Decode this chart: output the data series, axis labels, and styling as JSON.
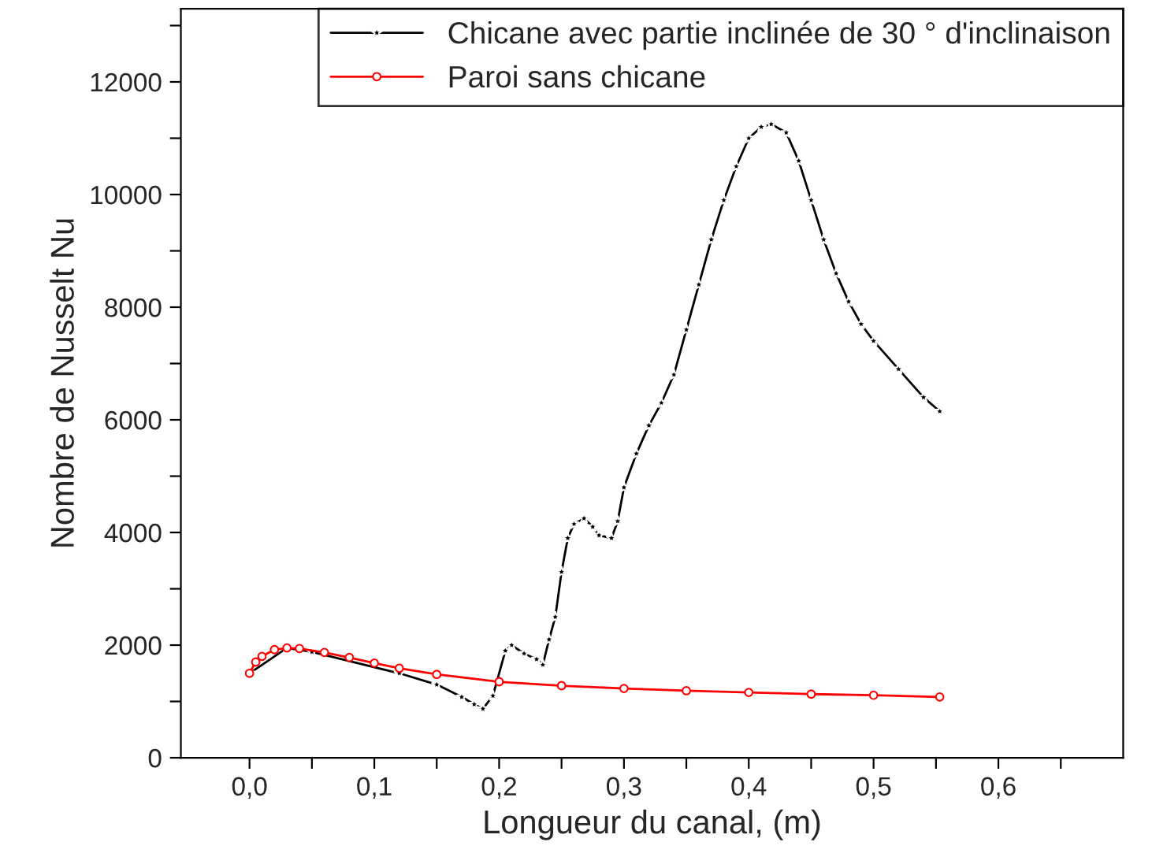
{
  "chart_data": {
    "type": "line",
    "xlabel": "Longueur du canal, (m)",
    "ylabel": "Nombre de Nusselt Nu",
    "xlim": [
      -0.055,
      0.7
    ],
    "ylim": [
      0,
      13300
    ],
    "xticks": [
      {
        "value": 0.0,
        "label": "0,0"
      },
      {
        "value": 0.05,
        "label": null
      },
      {
        "value": 0.1,
        "label": "0,1"
      },
      {
        "value": 0.15,
        "label": null
      },
      {
        "value": 0.2,
        "label": "0,2"
      },
      {
        "value": 0.25,
        "label": null
      },
      {
        "value": 0.3,
        "label": "0,3"
      },
      {
        "value": 0.35,
        "label": null
      },
      {
        "value": 0.4,
        "label": "0,4"
      },
      {
        "value": 0.45,
        "label": null
      },
      {
        "value": 0.5,
        "label": "0,5"
      },
      {
        "value": 0.55,
        "label": null
      },
      {
        "value": 0.6,
        "label": "0,6"
      },
      {
        "value": 0.65,
        "label": null
      }
    ],
    "yticks": [
      0,
      {
        "value": 1000,
        "label": null
      },
      2000,
      {
        "value": 3000,
        "label": null
      },
      4000,
      {
        "value": 5000,
        "label": null
      },
      6000,
      {
        "value": 7000,
        "label": null
      },
      8000,
      {
        "value": 9000,
        "label": null
      },
      10000,
      {
        "value": 11000,
        "label": null
      },
      12000,
      {
        "value": 13000,
        "label": null
      }
    ],
    "grid": false,
    "legend": "top right",
    "series": [
      {
        "name": "Chicane avec partie inclinée de 30 ° d'inclinaison",
        "color": "#000000",
        "marker": "star",
        "x": [
          0,
          0.03,
          0.05,
          0.12,
          0.15,
          0.17,
          0.18,
          0.187,
          0.195,
          0.205,
          0.21,
          0.22,
          0.23,
          0.235,
          0.24,
          0.245,
          0.25,
          0.255,
          0.26,
          0.268,
          0.275,
          0.28,
          0.29,
          0.295,
          0.3,
          0.31,
          0.32,
          0.33,
          0.34,
          0.35,
          0.36,
          0.37,
          0.38,
          0.39,
          0.4,
          0.41,
          0.418,
          0.43,
          0.44,
          0.45,
          0.46,
          0.47,
          0.48,
          0.49,
          0.5,
          0.52,
          0.54,
          0.553
        ],
        "values": [
          1500,
          1950,
          1880,
          1500,
          1300,
          1080,
          950,
          870,
          1100,
          1900,
          2000,
          1850,
          1750,
          1650,
          2100,
          2500,
          3300,
          3900,
          4150,
          4250,
          4100,
          3950,
          3900,
          4200,
          4800,
          5400,
          5900,
          6300,
          6800,
          7600,
          8400,
          9200,
          9900,
          10500,
          11000,
          11200,
          11250,
          11100,
          10600,
          9900,
          9200,
          8600,
          8100,
          7700,
          7400,
          6900,
          6400,
          6150
        ]
      },
      {
        "name": "Paroi sans chicane",
        "color": "#ff0000",
        "marker": "circle",
        "x": [
          0,
          0.005,
          0.01,
          0.02,
          0.03,
          0.04,
          0.06,
          0.08,
          0.1,
          0.12,
          0.15,
          0.2,
          0.25,
          0.3,
          0.35,
          0.4,
          0.45,
          0.5,
          0.553
        ],
        "values": [
          1500,
          1700,
          1800,
          1920,
          1950,
          1940,
          1870,
          1780,
          1680,
          1590,
          1480,
          1350,
          1280,
          1230,
          1190,
          1160,
          1130,
          1110,
          1080
        ]
      }
    ]
  }
}
